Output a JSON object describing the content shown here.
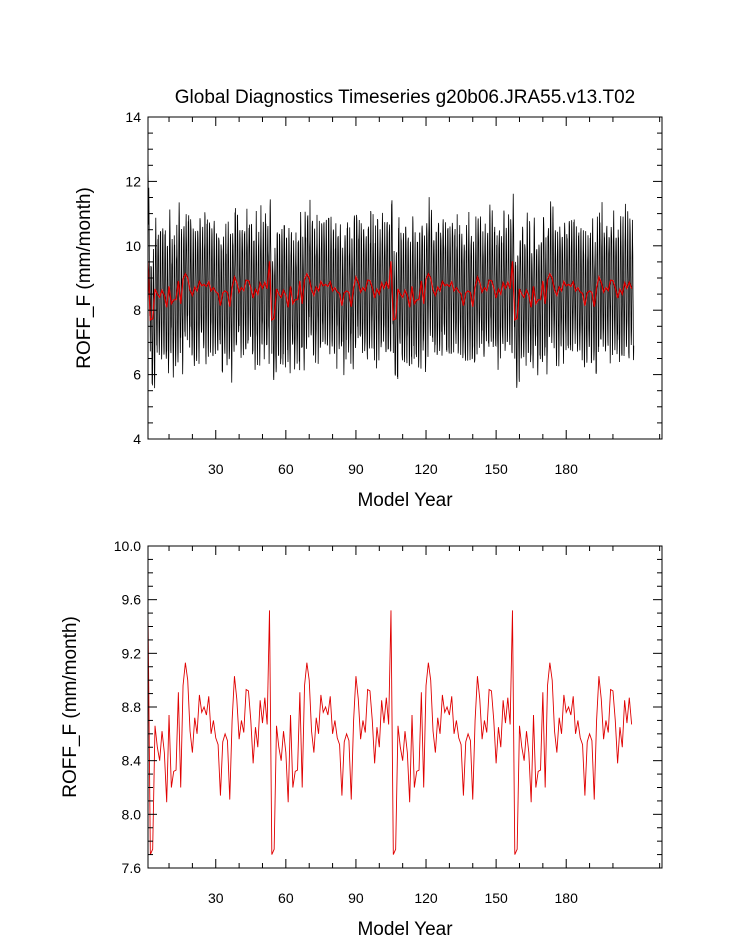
{
  "chart_data": [
    {
      "type": "line",
      "title": "Global Diagnostics Timeseries g20b06.JRA55.v13.T02",
      "xlabel": "Model Year",
      "ylabel": "ROFF_F (mm/month)",
      "xlim": [
        1,
        221
      ],
      "ylim": [
        4,
        14
      ],
      "xticks": [
        30,
        60,
        90,
        120,
        150,
        180
      ],
      "xtick_labels": [
        "30",
        "60",
        "90",
        "120",
        "150",
        "180"
      ],
      "yticks": [
        4,
        6,
        8,
        10,
        12,
        14
      ],
      "ytick_labels": [
        "4",
        "6",
        "8",
        "10",
        "12",
        "14"
      ],
      "grid": false,
      "legend": "none",
      "series": [
        {
          "kind": "monthly",
          "color": "#000000",
          "annual_amplitude": 1.9,
          "min": 6.0,
          "max": 12.6
        },
        {
          "kind": "annual-mean",
          "color": "#e00000"
        }
      ]
    },
    {
      "type": "line",
      "title": "",
      "xlabel": "Model Year",
      "ylabel": "ROFF_F (mm/month)",
      "xlim": [
        1,
        221
      ],
      "ylim": [
        7.6,
        10.0
      ],
      "xticks": [
        30,
        60,
        90,
        120,
        150,
        180
      ],
      "xtick_labels": [
        "30",
        "60",
        "90",
        "120",
        "150",
        "180"
      ],
      "yticks": [
        7.6,
        8.0,
        8.4,
        8.8,
        9.2,
        9.6,
        10.0
      ],
      "ytick_labels": [
        "7.6",
        "8.0",
        "8.4",
        "8.8",
        "9.2",
        "9.6",
        "10.0"
      ],
      "grid": false,
      "legend": "none",
      "series": [
        {
          "kind": "annual-mean",
          "color": "#e00000",
          "cycle_length": 52,
          "cycle": [
            9.52,
            7.7,
            7.74,
            8.66,
            8.5,
            8.4,
            8.62,
            8.46,
            8.09,
            8.74,
            8.2,
            8.32,
            8.33,
            8.91,
            8.2,
            8.96,
            9.13,
            9.0,
            8.62,
            8.46,
            8.72,
            8.6,
            8.89,
            8.76,
            8.8,
            8.74,
            8.88,
            8.6,
            8.7,
            8.57,
            8.52,
            8.14,
            8.54,
            8.6,
            8.55,
            8.11,
            8.7,
            9.03,
            8.86,
            8.56,
            8.7,
            8.61,
            8.93,
            8.92,
            8.7,
            8.38,
            8.65,
            8.5,
            8.85,
            8.68,
            8.87,
            8.67
          ]
        }
      ]
    }
  ]
}
